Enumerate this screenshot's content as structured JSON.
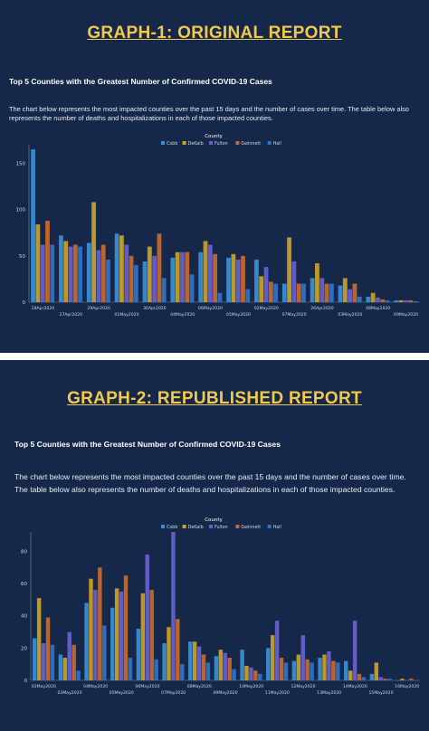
{
  "graph1": {
    "header": "GRAPH-1: ORIGINAL REPORT",
    "chart_title": "Top 5 Counties with the Greatest Number of Confirmed COVID-19 Cases",
    "description": "The chart below represents the most impacted counties over the past 15 days and the number of cases over time. The table below also represents the number of deaths and hospitalizations in each of those impacted counties."
  },
  "graph2": {
    "header": "GRAPH-2: REPUBLISHED REPORT",
    "chart_title": "Top 5 Counties with the Greatest Number of Confirmed COVID-19 Cases",
    "description": "The chart below represents the most impacted counties over the past 15 days and the number of cases over time. The table below also represents the number of deaths and hospitalizations in each of those impacted counties."
  },
  "colors": {
    "Cobb": "#3a8fd6",
    "DeKalb": "#c9a227",
    "Fulton": "#6a5fd0",
    "Gwinnett": "#c86a2a",
    "Hall": "#2f73c9"
  },
  "chart_data": [
    {
      "type": "bar",
      "legend_title": "County",
      "legend_position": "top-center",
      "ylim": [
        0,
        170
      ],
      "yticks": [
        0,
        50,
        100,
        150
      ],
      "categories": [
        "28Apr2020",
        "27Apr2020",
        "29Apr2020",
        "01May2020",
        "30Apr2020",
        "04May2020",
        "06May2020",
        "05May2020",
        "02May2020",
        "07May2020",
        "26Apr2020",
        "03May2020",
        "08May2020",
        "09May2020"
      ],
      "tick_labels_row1": [
        "28Apr2020",
        "29Apr2020",
        "30Apr2020",
        "06May2020",
        "02May2020",
        "26Apr2020",
        "08May2020"
      ],
      "tick_labels_row2": [
        "27Apr2020",
        "01May2020",
        "04May2020",
        "05May2020",
        "07May2020",
        "03May2020",
        "09May2020"
      ],
      "series": [
        {
          "name": "Cobb",
          "values": [
            165,
            72,
            64,
            74,
            44,
            48,
            54,
            48,
            46,
            20,
            26,
            18,
            6,
            2
          ]
        },
        {
          "name": "DeKalb",
          "values": [
            84,
            66,
            108,
            72,
            60,
            54,
            66,
            52,
            28,
            70,
            42,
            26,
            10,
            2
          ]
        },
        {
          "name": "Fulton",
          "values": [
            62,
            60,
            56,
            62,
            50,
            54,
            62,
            46,
            38,
            44,
            26,
            14,
            5,
            2
          ]
        },
        {
          "name": "Gwinnett",
          "values": [
            88,
            62,
            62,
            50,
            74,
            54,
            52,
            50,
            22,
            20,
            20,
            20,
            3,
            2
          ]
        },
        {
          "name": "Hall",
          "values": [
            62,
            60,
            46,
            40,
            26,
            30,
            10,
            14,
            20,
            20,
            20,
            6,
            2,
            1
          ]
        }
      ]
    },
    {
      "type": "bar",
      "legend_title": "County",
      "legend_position": "top-center",
      "ylim": [
        0,
        92
      ],
      "yticks": [
        0,
        20,
        40,
        60,
        80
      ],
      "categories": [
        "02May2020",
        "03May2020",
        "04May2020",
        "05May2020",
        "06May2020",
        "07May2020",
        "08May2020",
        "09May2020",
        "10May2020",
        "11May2020",
        "12May2020",
        "13May2020",
        "14May2020",
        "15May2020",
        "16May2020"
      ],
      "tick_labels_row1": [
        "02May2020",
        "04May2020",
        "06May2020",
        "08May2020",
        "10May2020",
        "12May2020",
        "14May2020",
        "16May2020"
      ],
      "tick_labels_row2": [
        "03May2020",
        "05May2020",
        "07May2020",
        "09May2020",
        "11May2020",
        "13May2020",
        "15May2020"
      ],
      "series": [
        {
          "name": "Cobb",
          "values": [
            26,
            16,
            48,
            45,
            32,
            23,
            24,
            15,
            19,
            20,
            12,
            14,
            12,
            4,
            0
          ]
        },
        {
          "name": "DeKalb",
          "values": [
            51,
            14,
            63,
            57,
            54,
            33,
            24,
            19,
            9,
            28,
            16,
            16,
            6,
            11,
            1
          ]
        },
        {
          "name": "Fulton",
          "values": [
            23,
            30,
            56,
            55,
            78,
            92,
            21,
            17,
            8,
            37,
            28,
            18,
            37,
            2,
            0
          ]
        },
        {
          "name": "Gwinnett",
          "values": [
            39,
            22,
            70,
            65,
            56,
            38,
            16,
            14,
            6,
            14,
            13,
            12,
            4,
            1,
            1
          ]
        },
        {
          "name": "Hall",
          "values": [
            22,
            6,
            34,
            14,
            13,
            10,
            11,
            7,
            4,
            11,
            11,
            11,
            2,
            1,
            0
          ]
        }
      ]
    }
  ]
}
